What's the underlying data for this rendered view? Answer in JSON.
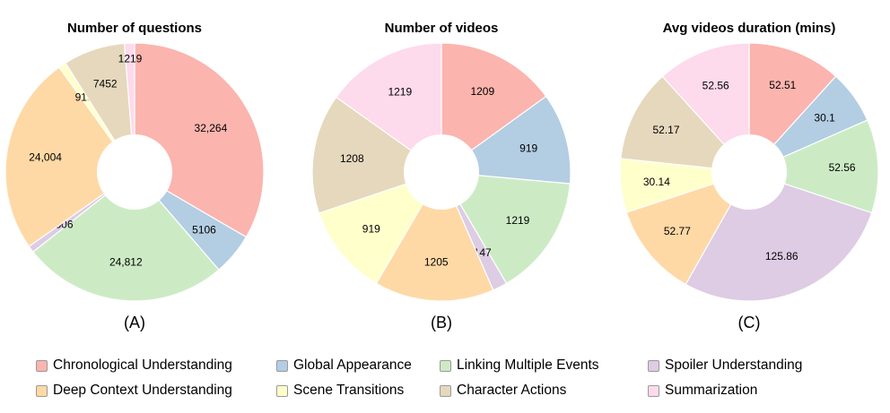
{
  "chart_data": [
    {
      "type": "pie",
      "title": "Number of questions",
      "panel_label": "(A)",
      "slices": [
        {
          "category": "Chronological Understanding",
          "value": 32264,
          "label": "32,264"
        },
        {
          "category": "Global Appearance",
          "value": 5106,
          "label": "5106"
        },
        {
          "category": "Linking Multiple Events",
          "value": 24812,
          "label": "24,812"
        },
        {
          "category": "Spoiler Understanding",
          "value": 806,
          "label": "806"
        },
        {
          "category": "Deep Context Understanding",
          "value": 24004,
          "label": "24,004"
        },
        {
          "category": "Scene Transitions",
          "value": 919,
          "label": "919"
        },
        {
          "category": "Character Actions",
          "value": 7452,
          "label": "7452"
        },
        {
          "category": "Summarization",
          "value": 1219,
          "label": "1219"
        }
      ]
    },
    {
      "type": "pie",
      "title": "Number of videos",
      "panel_label": "(B)",
      "slices": [
        {
          "category": "Chronological Understanding",
          "value": 1209,
          "label": "1209"
        },
        {
          "category": "Global Appearance",
          "value": 919,
          "label": "919"
        },
        {
          "category": "Linking Multiple Events",
          "value": 1219,
          "label": "1219"
        },
        {
          "category": "Spoiler Understanding",
          "value": 147,
          "label": "147"
        },
        {
          "category": "Deep Context Understanding",
          "value": 1205,
          "label": "1205"
        },
        {
          "category": "Scene Transitions",
          "value": 919,
          "label": "919"
        },
        {
          "category": "Character Actions",
          "value": 1208,
          "label": "1208"
        },
        {
          "category": "Summarization",
          "value": 1219,
          "label": "1219"
        }
      ]
    },
    {
      "type": "pie",
      "title": "Avg videos duration (mins)",
      "panel_label": "(C)",
      "slices": [
        {
          "category": "Chronological Understanding",
          "value": 52.51,
          "label": "52.51"
        },
        {
          "category": "Global Appearance",
          "value": 30.1,
          "label": "30.1"
        },
        {
          "category": "Linking Multiple Events",
          "value": 52.56,
          "label": "52.56"
        },
        {
          "category": "Spoiler Understanding",
          "value": 125.86,
          "label": "125.86"
        },
        {
          "category": "Deep Context Understanding",
          "value": 52.77,
          "label": "52.77"
        },
        {
          "category": "Scene Transitions",
          "value": 30.14,
          "label": "30.14"
        },
        {
          "category": "Character Actions",
          "value": 52.17,
          "label": "52.17"
        },
        {
          "category": "Summarization",
          "value": 52.56,
          "label": "52.56"
        }
      ]
    }
  ],
  "legend": {
    "placement": "bottom",
    "items": [
      {
        "label": "Chronological Understanding",
        "color": "#fbb4ae"
      },
      {
        "label": "Global Appearance",
        "color": "#b3cde3"
      },
      {
        "label": "Linking Multiple Events",
        "color": "#ccebc5"
      },
      {
        "label": "Spoiler Understanding",
        "color": "#decbe4"
      },
      {
        "label": "Deep Context Understanding",
        "color": "#fed9a6"
      },
      {
        "label": "Scene Transitions",
        "color": "#ffffcc"
      },
      {
        "label": "Character Actions",
        "color": "#e5d8bd"
      },
      {
        "label": "Summarization",
        "color": "#fddaec"
      }
    ]
  }
}
